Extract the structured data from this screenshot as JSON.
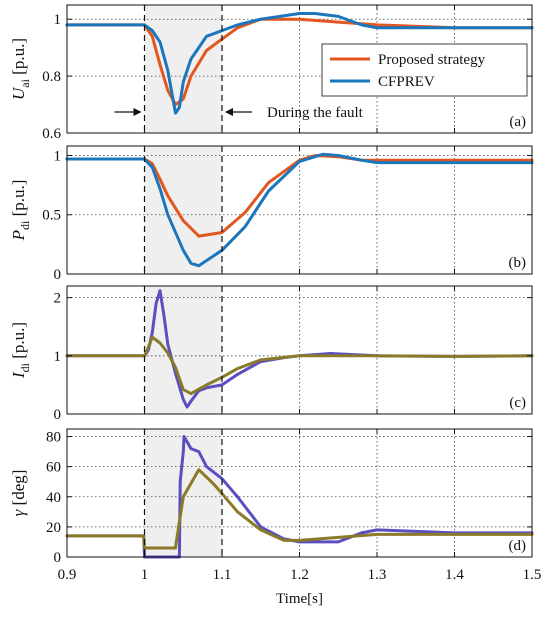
{
  "chart_data": {
    "type": "line",
    "xlabel": "Time[s]",
    "xlim": [
      0.9,
      1.5
    ],
    "xticks": [
      "0.9",
      "1",
      "1.1",
      "1.2",
      "1.3",
      "1.4",
      "1.5"
    ],
    "fault": {
      "start": 1.0,
      "end": 1.1,
      "label": "During the fault"
    },
    "colors": {
      "proposed": "#E2561F",
      "cfprev": "#1B76BC",
      "proposed_cd": "#8B7A2A",
      "cfprev_cd": "#5B4FC0",
      "shade": "#EFEFEF"
    },
    "legend": {
      "proposed": "Proposed strategy",
      "cfprev": "CFPREV",
      "placement": "top-right of panel (a)"
    },
    "panels": [
      {
        "id": "a",
        "tag": "(a)",
        "ylabel_sym": "U",
        "ylabel_sub": "ai",
        "ylabel_unit": " [p.u.]",
        "ylim": [
          0.6,
          1.05
        ],
        "yticks": [
          "0.6",
          "0.8",
          "1"
        ],
        "series": [
          {
            "name": "Proposed strategy",
            "color_key": "proposed",
            "x": [
              0.9,
              1.0,
              1.01,
              1.02,
              1.03,
              1.04,
              1.05,
              1.06,
              1.08,
              1.1,
              1.12,
              1.15,
              1.2,
              1.25,
              1.3,
              1.4,
              1.5
            ],
            "y": [
              0.98,
              0.98,
              0.94,
              0.84,
              0.75,
              0.7,
              0.72,
              0.8,
              0.89,
              0.93,
              0.97,
              1.0,
              1.0,
              0.99,
              0.98,
              0.97,
              0.97
            ]
          },
          {
            "name": "CFPREV",
            "color_key": "cfprev",
            "x": [
              0.9,
              1.0,
              1.01,
              1.02,
              1.03,
              1.04,
              1.045,
              1.05,
              1.06,
              1.08,
              1.1,
              1.12,
              1.15,
              1.2,
              1.22,
              1.25,
              1.28,
              1.3,
              1.4,
              1.5
            ],
            "y": [
              0.98,
              0.98,
              0.96,
              0.92,
              0.82,
              0.67,
              0.69,
              0.78,
              0.86,
              0.94,
              0.96,
              0.98,
              1.0,
              1.02,
              1.02,
              1.01,
              0.98,
              0.97,
              0.97,
              0.97
            ]
          }
        ]
      },
      {
        "id": "b",
        "tag": "(b)",
        "ylabel_sym": "P",
        "ylabel_sub": "di",
        "ylabel_unit": " [p.u.]",
        "ylim": [
          0,
          1.08
        ],
        "yticks": [
          "0",
          "0.5",
          "1"
        ],
        "series": [
          {
            "name": "Proposed strategy",
            "color_key": "proposed",
            "x": [
              0.9,
              1.0,
              1.01,
              1.02,
              1.03,
              1.05,
              1.07,
              1.1,
              1.13,
              1.16,
              1.2,
              1.22,
              1.25,
              1.28,
              1.3,
              1.4,
              1.5
            ],
            "y": [
              0.97,
              0.97,
              0.93,
              0.8,
              0.66,
              0.45,
              0.32,
              0.35,
              0.52,
              0.77,
              0.96,
              1.0,
              0.99,
              0.96,
              0.96,
              0.96,
              0.96
            ]
          },
          {
            "name": "CFPREV",
            "color_key": "cfprev",
            "x": [
              0.9,
              1.0,
              1.01,
              1.02,
              1.03,
              1.05,
              1.06,
              1.07,
              1.1,
              1.13,
              1.16,
              1.2,
              1.23,
              1.25,
              1.28,
              1.3,
              1.4,
              1.5
            ],
            "y": [
              0.97,
              0.97,
              0.9,
              0.72,
              0.5,
              0.2,
              0.09,
              0.07,
              0.2,
              0.4,
              0.7,
              0.95,
              1.01,
              1.0,
              0.96,
              0.94,
              0.94,
              0.94
            ]
          }
        ]
      },
      {
        "id": "c",
        "tag": "(c)",
        "ylabel_sym": "I",
        "ylabel_sub": "di",
        "ylabel_unit": " [p.u.]",
        "ylim": [
          0,
          2.2
        ],
        "yticks": [
          "0",
          "1",
          "2"
        ],
        "series": [
          {
            "name": "CFPREV",
            "color_key": "cfprev_cd",
            "x": [
              0.9,
              1.0,
              1.005,
              1.01,
              1.015,
              1.02,
              1.025,
              1.03,
              1.04,
              1.05,
              1.055,
              1.06,
              1.07,
              1.08,
              1.1,
              1.12,
              1.15,
              1.18,
              1.2,
              1.24,
              1.3,
              1.4,
              1.5
            ],
            "y": [
              1.0,
              1.0,
              1.1,
              1.4,
              1.9,
              2.12,
              1.7,
              1.2,
              0.7,
              0.25,
              0.12,
              0.22,
              0.4,
              0.45,
              0.5,
              0.68,
              0.9,
              0.97,
              1.0,
              1.04,
              1.0,
              0.99,
              1.0
            ]
          },
          {
            "name": "Proposed strategy",
            "color_key": "proposed_cd",
            "x": [
              0.9,
              1.0,
              1.005,
              1.01,
              1.02,
              1.03,
              1.04,
              1.05,
              1.06,
              1.08,
              1.1,
              1.12,
              1.15,
              1.2,
              1.3,
              1.4,
              1.5
            ],
            "y": [
              1.0,
              1.0,
              1.15,
              1.32,
              1.22,
              1.05,
              0.8,
              0.42,
              0.35,
              0.5,
              0.63,
              0.78,
              0.93,
              1.0,
              1.0,
              0.99,
              1.0
            ]
          }
        ]
      },
      {
        "id": "d",
        "tag": "(d)",
        "ylabel_sym": "γ",
        "ylabel_sub": "",
        "ylabel_unit": " [deg]",
        "ylim": [
          0,
          85
        ],
        "yticks": [
          "0",
          "20",
          "40",
          "60",
          "80"
        ],
        "series": [
          {
            "name": "CFPREV",
            "color_key": "cfprev_cd",
            "x": [
              0.9,
              0.999,
              1.0,
              1.045,
              1.046,
              1.05,
              1.051,
              1.06,
              1.07,
              1.08,
              1.1,
              1.12,
              1.15,
              1.18,
              1.2,
              1.25,
              1.28,
              1.3,
              1.35,
              1.4,
              1.5
            ],
            "y": [
              14,
              14,
              0,
              0,
              50,
              70,
              80,
              72,
              70,
              60,
              52,
              40,
              20,
              12,
              10,
              10,
              16,
              18,
              17,
              16,
              16
            ]
          },
          {
            "name": "Proposed strategy",
            "color_key": "proposed_cd",
            "x": [
              0.9,
              0.999,
              1.0,
              1.04,
              1.041,
              1.05,
              1.07,
              1.09,
              1.12,
              1.15,
              1.18,
              1.2,
              1.25,
              1.3,
              1.4,
              1.5
            ],
            "y": [
              14,
              14,
              6,
              6,
              10,
              40,
              58,
              48,
              30,
              18,
              11,
              11,
              13,
              15,
              15,
              15
            ]
          }
        ]
      }
    ]
  }
}
